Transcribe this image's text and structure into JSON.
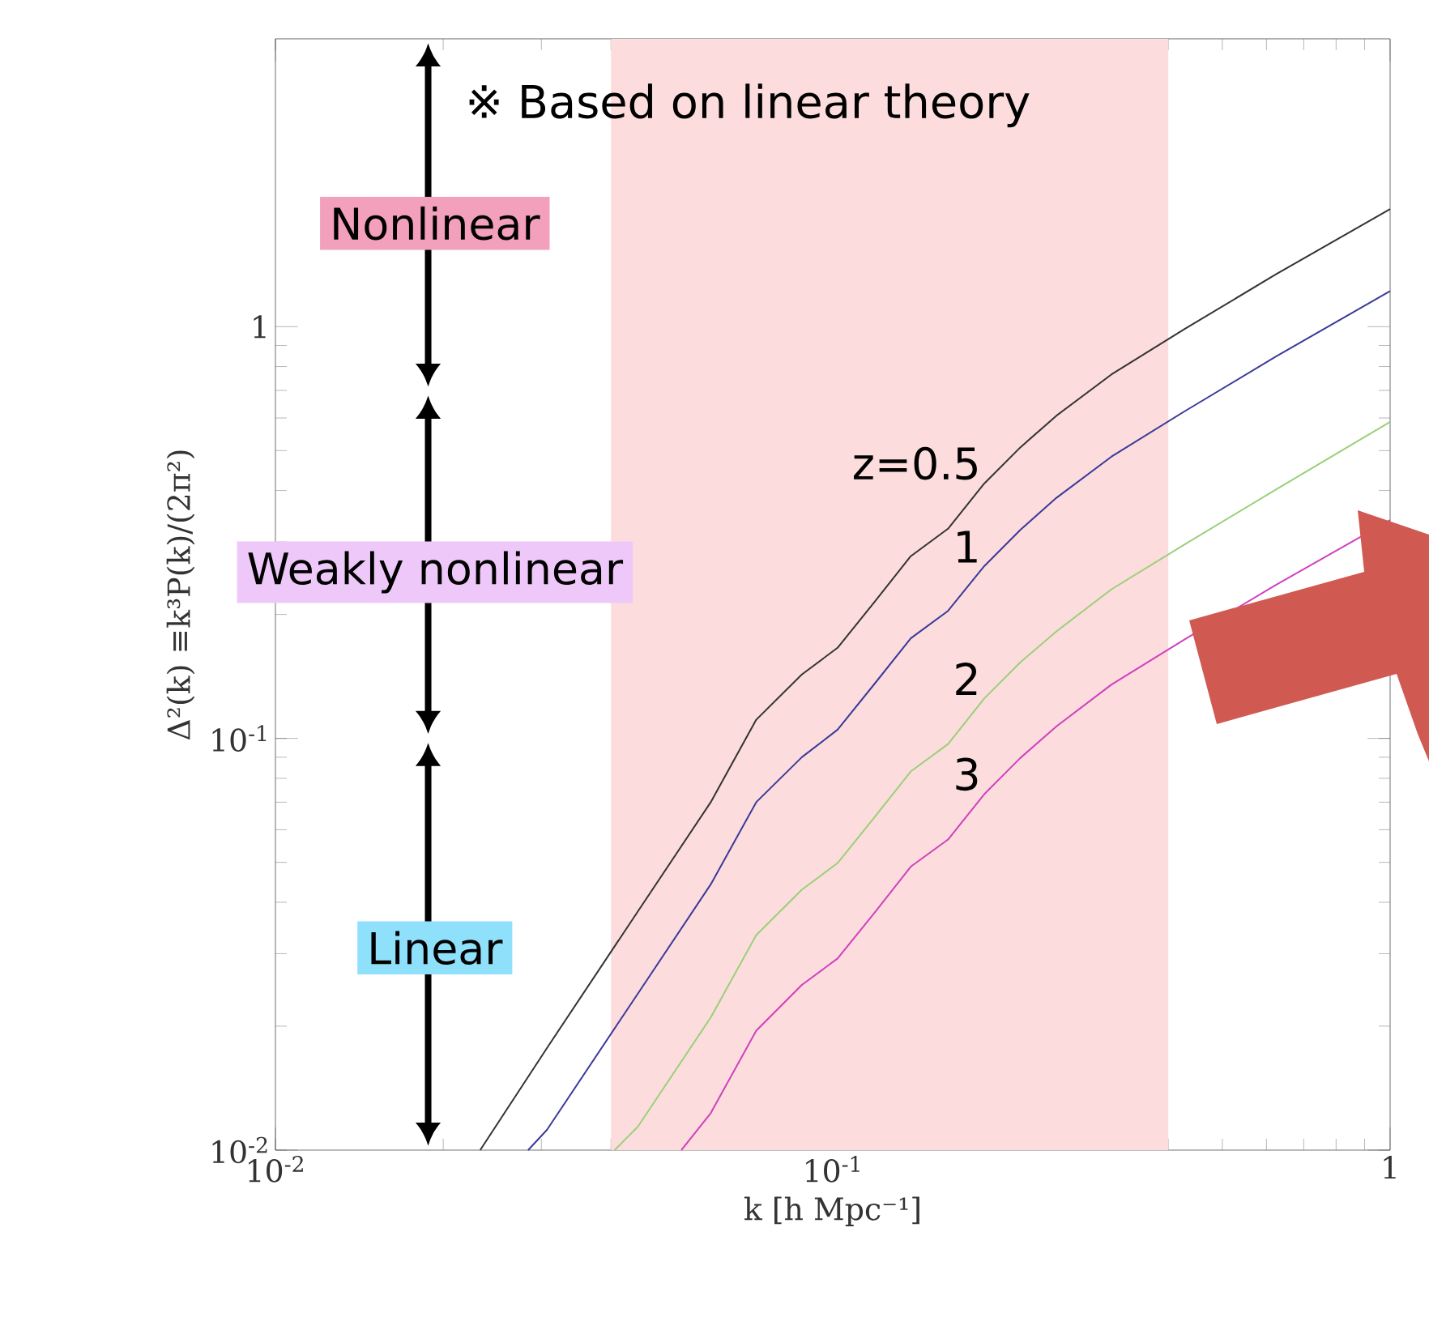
{
  "chart_data": {
    "type": "line",
    "xlabel": "k [h Mpc⁻¹]",
    "ylabel": "Δ²(k)  ≡k³P(k)/(2π²)",
    "log": "xy",
    "grid": false,
    "xlim": [
      0.01,
      1
    ],
    "ylim": [
      0.01,
      5
    ],
    "xticks": [
      {
        "value": 0.01,
        "label": "10$^{-2}$"
      },
      {
        "value": 0.1,
        "label": "10$^{-1}$"
      },
      {
        "value": 1,
        "label": "1"
      }
    ],
    "yticks": [
      {
        "value": 0.01,
        "label": "10$^{-2}$"
      },
      {
        "value": 0.1,
        "label": "10$^{-1}$"
      },
      {
        "value": 1,
        "label": "1"
      }
    ],
    "annotations": [
      "※ Based on linear theory",
      "Nonlinear",
      "Weakly nonlinear",
      "Linear"
    ],
    "bands": [
      {
        "axis": "x",
        "from": 0.04,
        "to": 0.4,
        "color": "#fcdcdc"
      }
    ],
    "series": [
      {
        "name": "z=0.5",
        "color": "#333333",
        "x": [
          0.0233,
          0.0307,
          0.0447,
          0.0604,
          0.0729,
          0.088,
          0.102,
          0.119,
          0.138,
          0.161,
          0.187,
          0.217,
          0.252,
          0.316,
          0.428,
          0.624,
          1.0
        ],
        "values": [
          0.01,
          0.0177,
          0.038,
          0.07,
          0.111,
          0.143,
          0.166,
          0.215,
          0.277,
          0.323,
          0.416,
          0.509,
          0.608,
          0.765,
          0.987,
          1.34,
          1.93
        ]
      },
      {
        "name": "1",
        "color": "#3a3a9a",
        "x": [
          0.0284,
          0.0307,
          0.0447,
          0.0604,
          0.0729,
          0.088,
          0.102,
          0.119,
          0.138,
          0.161,
          0.187,
          0.217,
          0.252,
          0.316,
          0.428,
          0.624,
          1.0
        ],
        "values": [
          0.01,
          0.0112,
          0.024,
          0.0442,
          0.07,
          0.09,
          0.105,
          0.136,
          0.175,
          0.204,
          0.262,
          0.321,
          0.384,
          0.483,
          0.623,
          0.846,
          1.22
        ]
      },
      {
        "name": "2",
        "color": "#9ad07a",
        "x": [
          0.0406,
          0.0447,
          0.0604,
          0.0729,
          0.088,
          0.102,
          0.119,
          0.138,
          0.161,
          0.187,
          0.217,
          0.252,
          0.316,
          0.428,
          0.624,
          1.0
        ],
        "values": [
          0.01,
          0.0114,
          0.021,
          0.0333,
          0.0429,
          0.0498,
          0.0645,
          0.0831,
          0.0969,
          0.125,
          0.153,
          0.182,
          0.23,
          0.296,
          0.402,
          0.587
        ]
      },
      {
        "name": "3",
        "color": "#d040c0",
        "x": [
          0.0535,
          0.0604,
          0.0729,
          0.088,
          0.102,
          0.119,
          0.138,
          0.161,
          0.187,
          0.217,
          0.252,
          0.316,
          0.428,
          0.624,
          1.0
        ],
        "values": [
          0.01,
          0.0123,
          0.0195,
          0.0252,
          0.0292,
          0.0378,
          0.0488,
          0.0568,
          0.0732,
          0.0896,
          0.107,
          0.135,
          0.174,
          0.236,
          0.339
        ]
      }
    ]
  }
}
